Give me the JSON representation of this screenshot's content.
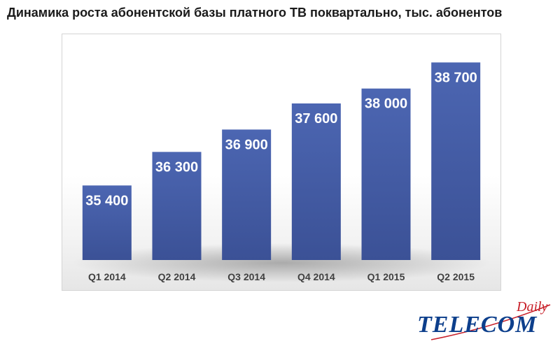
{
  "title": "Динамика роста абонентской базы платного ТВ поквартально, тыс. абонентов",
  "chart_data": {
    "type": "bar",
    "title": "Динамика роста абонентской базы платного ТВ поквартально, тыс. абонентов",
    "categories": [
      "Q1 2014",
      "Q2 2014",
      "Q3 2014",
      "Q4 2014",
      "Q1 2015",
      "Q2 2015"
    ],
    "values": [
      35400,
      36300,
      36900,
      37600,
      38000,
      38700
    ],
    "value_labels": [
      "35 400",
      "36 300",
      "36 900",
      "37 600",
      "38 000",
      "38 700"
    ],
    "xlabel": "",
    "ylabel": "",
    "ylim": [
      33400,
      39100
    ],
    "grid": false,
    "legend": "none",
    "bar_color": "#4a63ad",
    "bar_color_dark": "#3a4f91"
  },
  "logo": {
    "main": "TELECOM",
    "accent": "Daily",
    "main_color": "#0d3f8c",
    "accent_color": "#c8202a"
  }
}
